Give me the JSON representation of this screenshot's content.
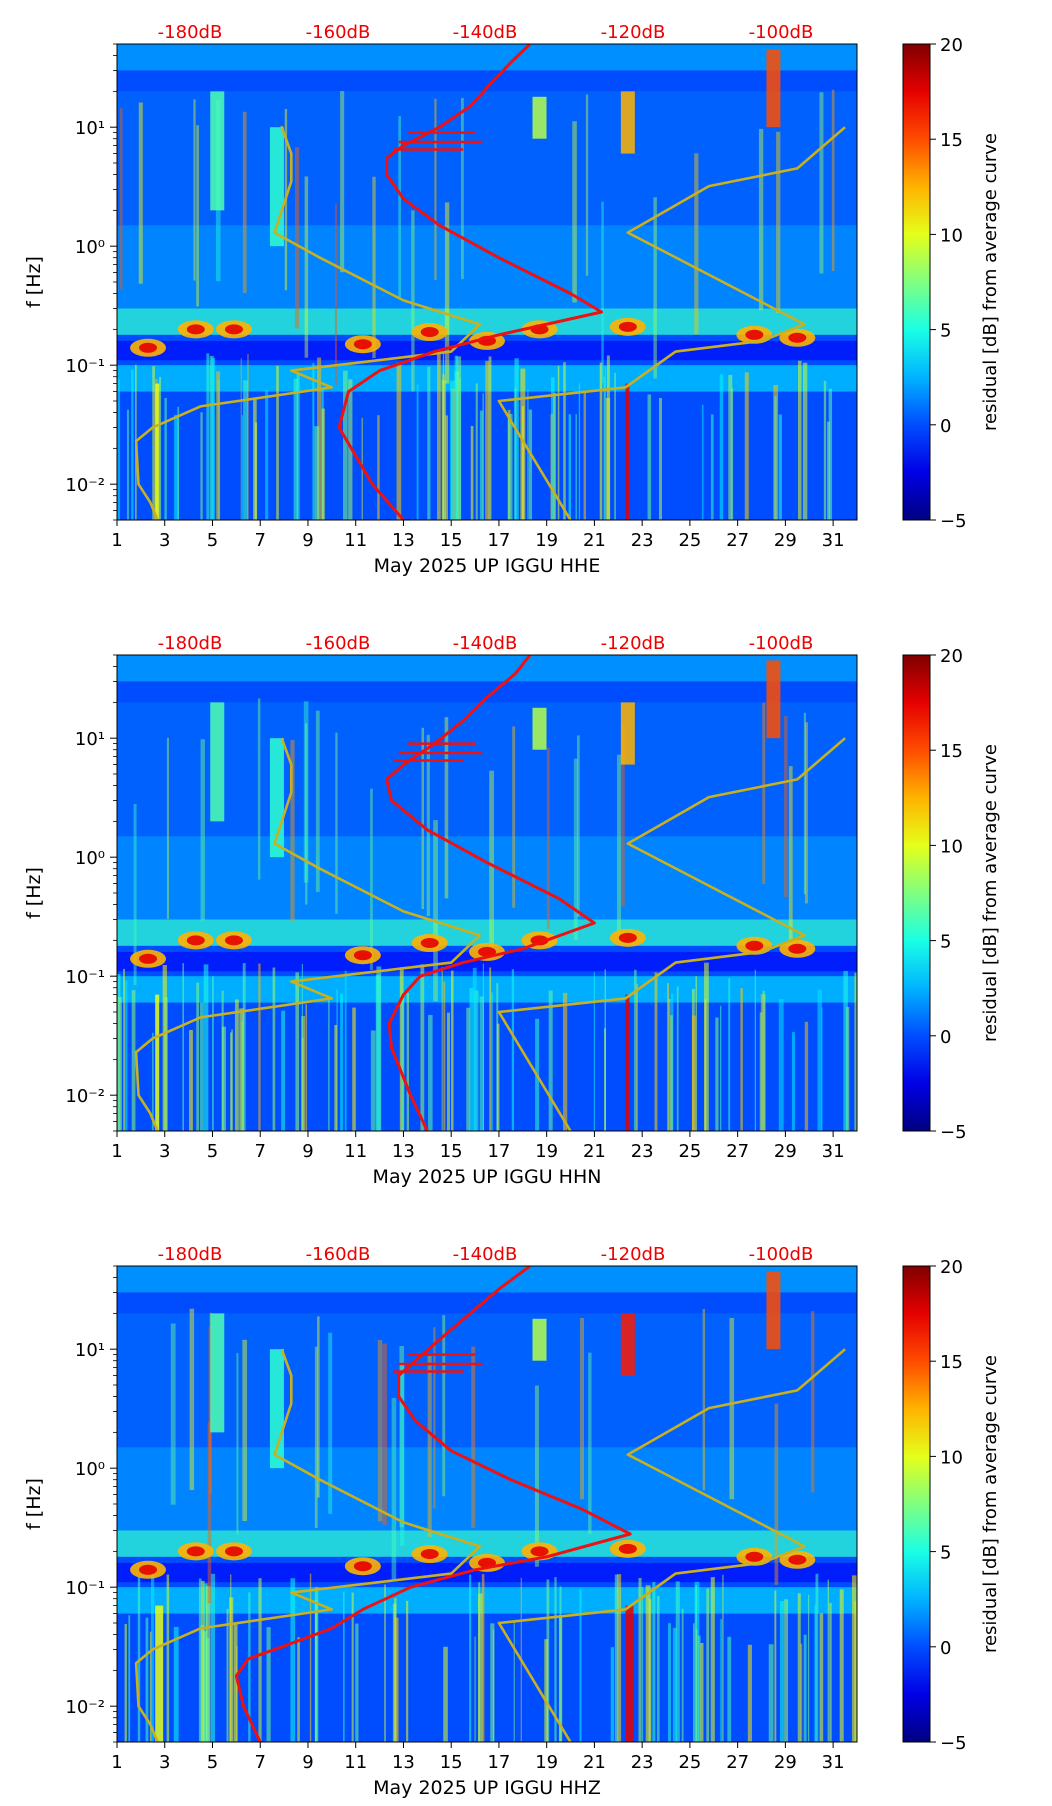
{
  "colorbar_ticks": [
    "20",
    "15",
    "10",
    "5",
    "0",
    "−5"
  ],
  "colorbar_label": "residual [dB] from average curve",
  "db_labels": [
    "-180dB",
    "-160dB",
    "-140dB",
    "-120dB",
    "-100dB"
  ],
  "colors": {
    "nlnm_hlnm": "#c8b020",
    "median_psd": "#ee1111",
    "db_label": "#ee0000"
  },
  "chart_data": [
    {
      "type": "heatmap",
      "title": "",
      "xlabel": "May 2025 UP IGGU  HHE",
      "ylabel": "f [Hz]",
      "xlim": [
        1,
        32
      ],
      "ylim": [
        0.005,
        50
      ],
      "yscale": "log",
      "x_ticks": [
        "1",
        "3",
        "5",
        "7",
        "9",
        "11",
        "13",
        "15",
        "17",
        "19",
        "21",
        "23",
        "25",
        "27",
        "29",
        "31"
      ],
      "y_ticks": [
        "10⁻²",
        "10⁻¹",
        "10⁰",
        "10¹"
      ],
      "colorbar": {
        "label": "residual [dB] from average curve",
        "range": [
          -5,
          20
        ]
      },
      "overlay_db_ticks": [
        -180,
        -160,
        -140,
        -120,
        -100
      ],
      "series": [
        {
          "name": "",
          "color": "#c8b020",
          "points": [
            [
              2.7,
              0.005
            ],
            [
              2.4,
              0.007
            ],
            [
              1.9,
              0.01
            ],
            [
              1.8,
              0.023
            ],
            [
              2.5,
              0.03
            ],
            [
              4.5,
              0.045
            ],
            [
              10,
              0.065
            ],
            [
              8.3,
              0.09
            ],
            [
              15,
              0.13
            ],
            [
              16.2,
              0.22
            ],
            [
              13,
              0.35
            ],
            [
              9.5,
              0.8
            ],
            [
              7.6,
              1.3
            ],
            [
              8.3,
              3.5
            ],
            [
              8.3,
              6
            ],
            [
              7.9,
              10
            ],
            [
              7.9,
              10
            ],
            [
              8.3,
              6
            ],
            [
              8.3,
              3.5
            ],
            [
              7.6,
              1.3
            ]
          ]
        },
        {
          "name": "",
          "color": "#c8b020",
          "points": [
            [
              20,
              0.005
            ],
            [
              17,
              0.05
            ],
            [
              22.3,
              0.065
            ],
            [
              24.4,
              0.13
            ],
            [
              28,
              0.16
            ],
            [
              29.8,
              0.22
            ],
            [
              22.4,
              1.3
            ],
            [
              25.8,
              3.2
            ],
            [
              29.5,
              4.5
            ],
            [
              31.5,
              10
            ]
          ]
        },
        {
          "name": "",
          "color": "#ee1111",
          "points": [
            [
              13,
              0.005
            ],
            [
              11.7,
              0.01
            ],
            [
              10.3,
              0.03
            ],
            [
              10.7,
              0.06
            ],
            [
              12,
              0.09
            ],
            [
              14.3,
              0.13
            ],
            [
              17,
              0.18
            ],
            [
              21.3,
              0.28
            ],
            [
              20,
              0.4
            ],
            [
              17,
              0.8
            ],
            [
              14.5,
              1.5
            ],
            [
              13,
              2.5
            ],
            [
              12.3,
              4
            ],
            [
              12.3,
              5.5
            ],
            [
              13,
              7
            ],
            [
              14.5,
              10
            ],
            [
              15.8,
              15
            ],
            [
              16.8,
              25
            ],
            [
              17.5,
              35
            ],
            [
              18.3,
              50
            ]
          ]
        }
      ]
    },
    {
      "type": "heatmap",
      "title": "",
      "xlabel": "May 2025 UP IGGU  HHN",
      "ylabel": "f [Hz]",
      "xlim": [
        1,
        32
      ],
      "ylim": [
        0.005,
        50
      ],
      "yscale": "log",
      "x_ticks": [
        "1",
        "3",
        "5",
        "7",
        "9",
        "11",
        "13",
        "15",
        "17",
        "19",
        "21",
        "23",
        "25",
        "27",
        "29",
        "31"
      ],
      "y_ticks": [
        "10⁻²",
        "10⁻¹",
        "10⁰",
        "10¹"
      ],
      "colorbar": {
        "label": "residual [dB] from average curve",
        "range": [
          -5,
          20
        ]
      },
      "overlay_db_ticks": [
        -180,
        -160,
        -140,
        -120,
        -100
      ],
      "series": [
        {
          "name": "",
          "color": "#c8b020",
          "points": [
            [
              2.7,
              0.005
            ],
            [
              2.4,
              0.007
            ],
            [
              1.9,
              0.01
            ],
            [
              1.8,
              0.023
            ],
            [
              2.5,
              0.03
            ],
            [
              4.5,
              0.045
            ],
            [
              10,
              0.065
            ],
            [
              8.3,
              0.09
            ],
            [
              15,
              0.13
            ],
            [
              16.2,
              0.22
            ],
            [
              13,
              0.35
            ],
            [
              9.5,
              0.8
            ],
            [
              7.6,
              1.3
            ],
            [
              8.3,
              3.5
            ],
            [
              8.3,
              6
            ],
            [
              7.9,
              10
            ]
          ]
        },
        {
          "name": "",
          "color": "#c8b020",
          "points": [
            [
              20,
              0.005
            ],
            [
              17,
              0.05
            ],
            [
              22.3,
              0.065
            ],
            [
              24.4,
              0.13
            ],
            [
              28,
              0.16
            ],
            [
              29.8,
              0.22
            ],
            [
              22.4,
              1.3
            ],
            [
              25.8,
              3.2
            ],
            [
              29.5,
              4.5
            ],
            [
              31.5,
              10
            ]
          ]
        },
        {
          "name": "",
          "color": "#ee1111",
          "points": [
            [
              14,
              0.005
            ],
            [
              13.3,
              0.01
            ],
            [
              12.5,
              0.025
            ],
            [
              12.4,
              0.04
            ],
            [
              13,
              0.07
            ],
            [
              13.7,
              0.1
            ],
            [
              15.5,
              0.13
            ],
            [
              18,
              0.17
            ],
            [
              21,
              0.28
            ],
            [
              19.5,
              0.45
            ],
            [
              16.5,
              0.9
            ],
            [
              14,
              1.7
            ],
            [
              12.5,
              3
            ],
            [
              12.3,
              4.5
            ],
            [
              13,
              6
            ],
            [
              14.3,
              9
            ],
            [
              15.5,
              14
            ],
            [
              16.5,
              22
            ],
            [
              17.7,
              35
            ],
            [
              18.3,
              50
            ]
          ]
        }
      ]
    },
    {
      "type": "heatmap",
      "title": "",
      "xlabel": "May 2025 UP IGGU  HHZ",
      "ylabel": "f [Hz]",
      "xlim": [
        1,
        32
      ],
      "ylim": [
        0.005,
        50
      ],
      "yscale": "log",
      "x_ticks": [
        "1",
        "3",
        "5",
        "7",
        "9",
        "11",
        "13",
        "15",
        "17",
        "19",
        "21",
        "23",
        "25",
        "27",
        "29",
        "31"
      ],
      "y_ticks": [
        "10⁻²",
        "10⁻¹",
        "10⁰",
        "10¹"
      ],
      "colorbar": {
        "label": "residual [dB] from average curve",
        "range": [
          -5,
          20
        ]
      },
      "overlay_db_ticks": [
        -180,
        -160,
        -140,
        -120,
        -100
      ],
      "series": [
        {
          "name": "",
          "color": "#c8b020",
          "points": [
            [
              2.7,
              0.005
            ],
            [
              2.4,
              0.007
            ],
            [
              1.9,
              0.01
            ],
            [
              1.8,
              0.023
            ],
            [
              2.5,
              0.03
            ],
            [
              4.5,
              0.045
            ],
            [
              10,
              0.065
            ],
            [
              8.3,
              0.09
            ],
            [
              15,
              0.13
            ],
            [
              16.2,
              0.22
            ],
            [
              13,
              0.35
            ],
            [
              9.5,
              0.8
            ],
            [
              7.6,
              1.3
            ],
            [
              8.3,
              3.5
            ],
            [
              8.3,
              6
            ],
            [
              7.9,
              10
            ]
          ]
        },
        {
          "name": "",
          "color": "#c8b020",
          "points": [
            [
              20,
              0.005
            ],
            [
              17,
              0.05
            ],
            [
              22.3,
              0.065
            ],
            [
              24.4,
              0.13
            ],
            [
              28,
              0.16
            ],
            [
              29.8,
              0.22
            ],
            [
              22.4,
              1.3
            ],
            [
              25.8,
              3.2
            ],
            [
              29.5,
              4.5
            ],
            [
              31.5,
              10
            ]
          ]
        },
        {
          "name": "",
          "color": "#ee1111",
          "points": [
            [
              7,
              0.005
            ],
            [
              6.3,
              0.01
            ],
            [
              6,
              0.018
            ],
            [
              6.5,
              0.025
            ],
            [
              8,
              0.032
            ],
            [
              10,
              0.045
            ],
            [
              11.3,
              0.065
            ],
            [
              13.3,
              0.1
            ],
            [
              16,
              0.14
            ],
            [
              19,
              0.18
            ],
            [
              22.5,
              0.28
            ],
            [
              20.5,
              0.45
            ],
            [
              17.5,
              0.8
            ],
            [
              15,
              1.4
            ],
            [
              13.5,
              2.5
            ],
            [
              12.8,
              4
            ],
            [
              12.8,
              6
            ],
            [
              13.5,
              8
            ],
            [
              14.5,
              12
            ],
            [
              15.8,
              20
            ],
            [
              17,
              32
            ],
            [
              18.3,
              50
            ]
          ]
        }
      ]
    }
  ]
}
